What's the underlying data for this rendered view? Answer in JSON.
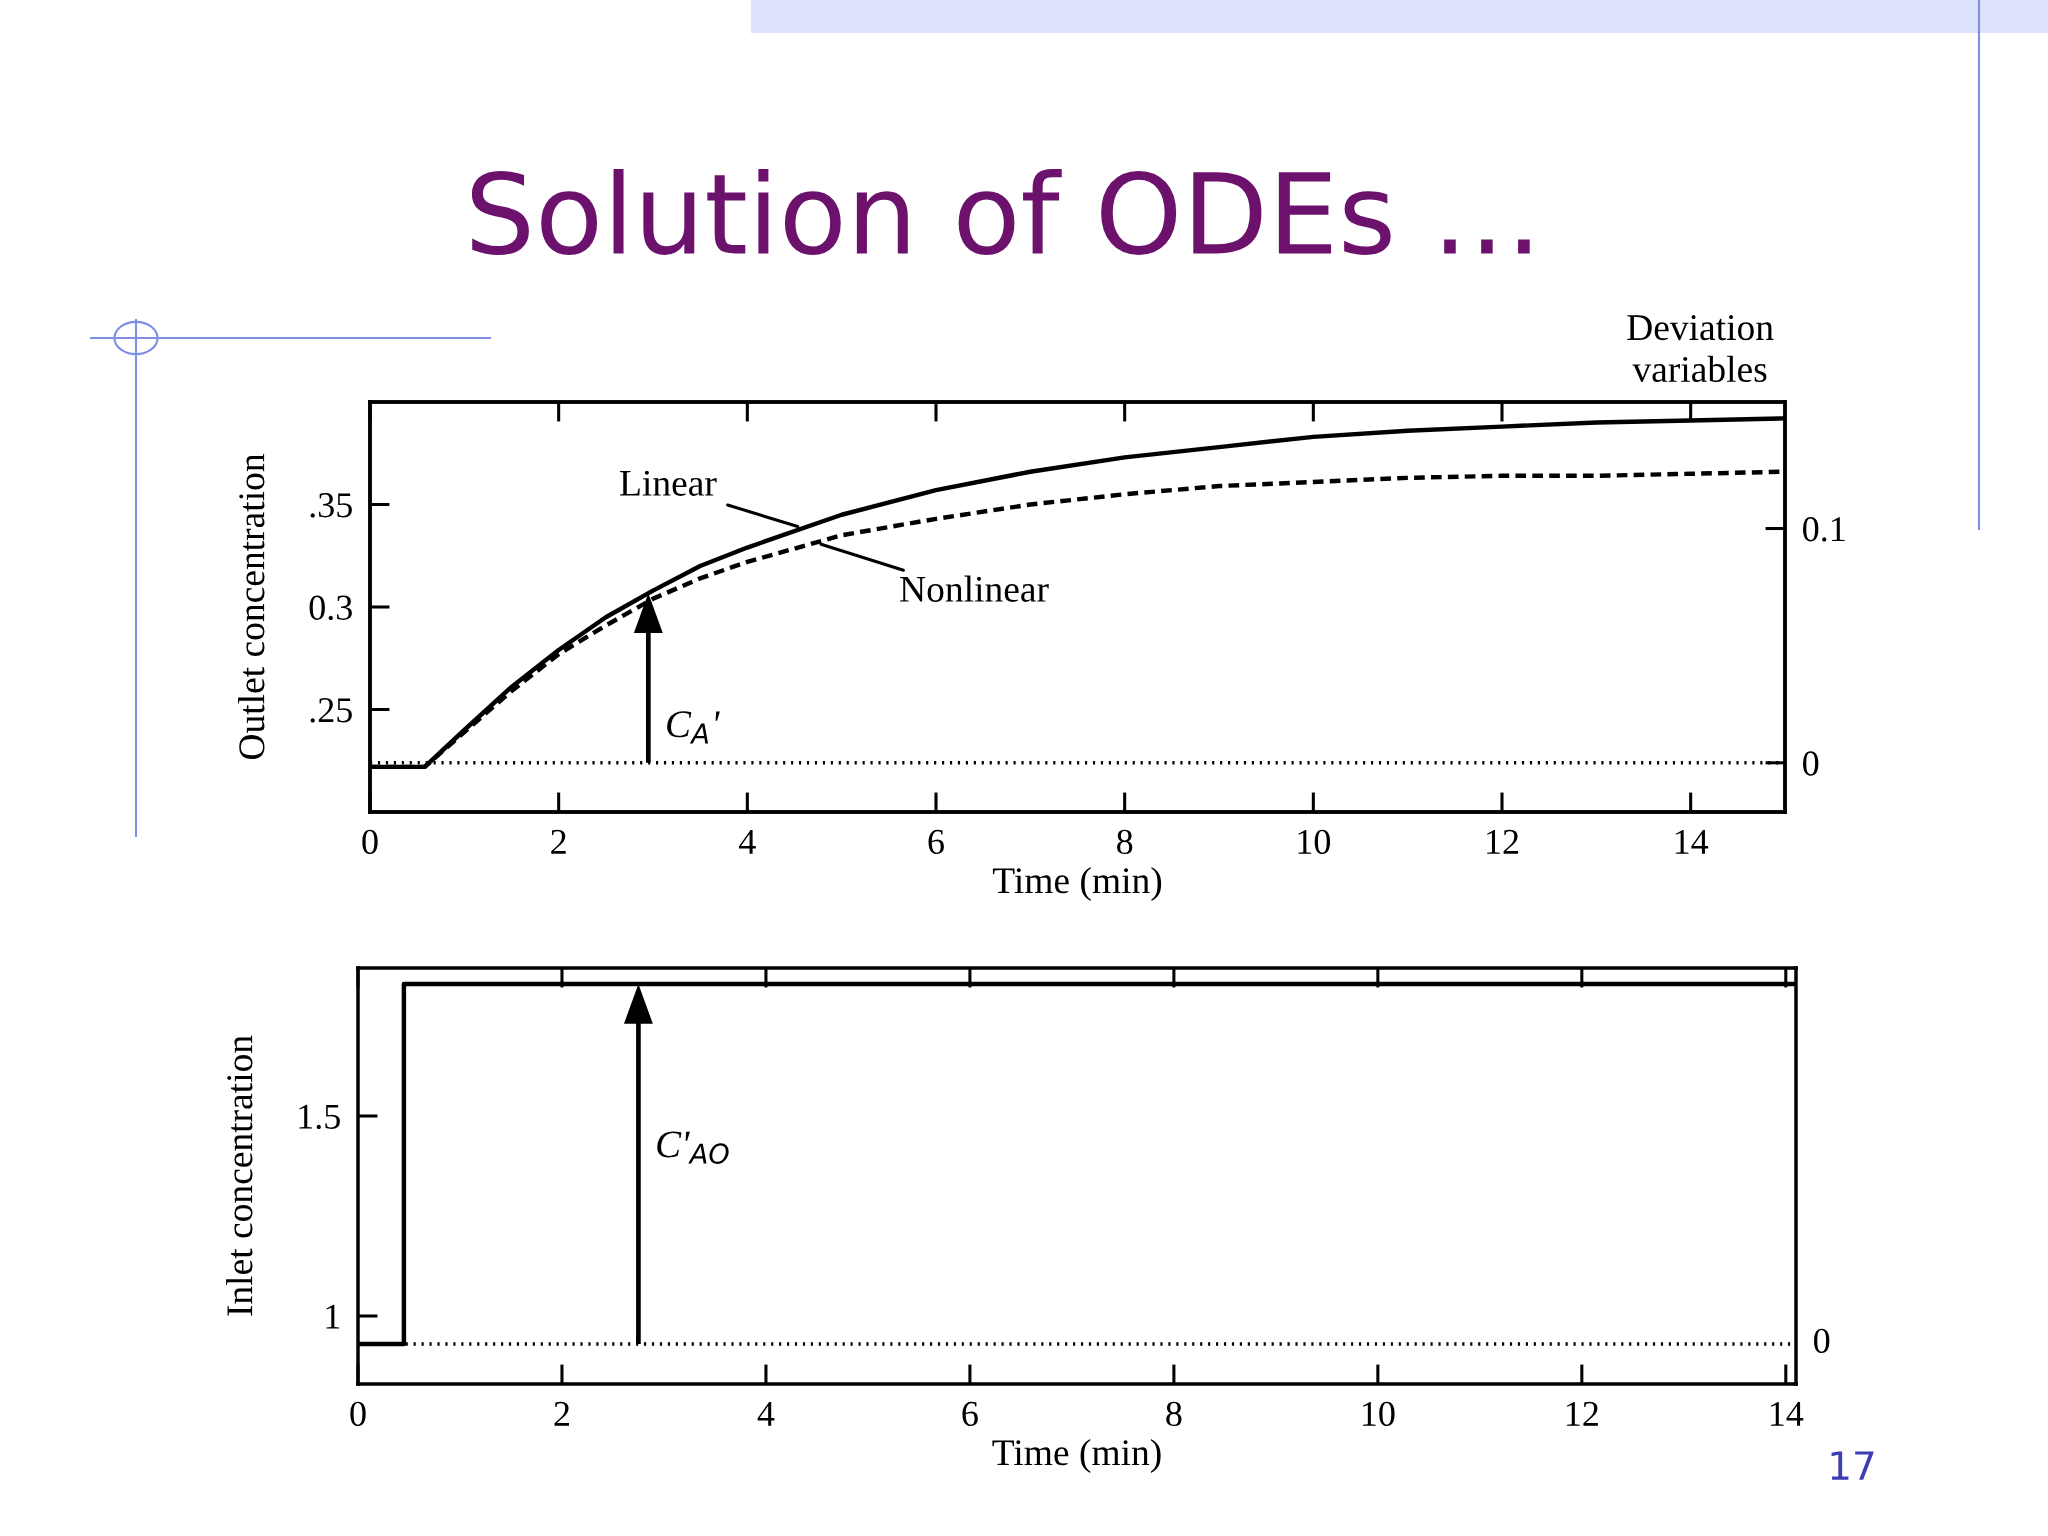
{
  "chart_data": [
    {
      "type": "line",
      "title": "Solution of ODEs …",
      "xlabel": "Time (min)",
      "ylabel": "Outlet concentration",
      "y2label": "Deviation\nvariables",
      "x": [
        0,
        0.58,
        1,
        1.5,
        2,
        2.5,
        3,
        3.5,
        4,
        5,
        6,
        7,
        8,
        9,
        10,
        11,
        12,
        13,
        14,
        15
      ],
      "series": [
        {
          "name": "Linear",
          "color": "#000000",
          "line_style": "solid",
          "values": [
            0.222,
            0.222,
            0.24,
            0.261,
            0.279,
            0.295,
            0.308,
            0.32,
            0.329,
            0.345,
            0.357,
            0.366,
            0.373,
            0.378,
            0.383,
            0.386,
            0.388,
            0.39,
            0.391,
            0.392
          ]
        },
        {
          "name": "Nonlinear",
          "color": "#000000",
          "line_style": "dashed",
          "values": [
            0.222,
            0.222,
            0.239,
            0.259,
            0.277,
            0.291,
            0.304,
            0.314,
            0.322,
            0.335,
            0.343,
            0.35,
            0.355,
            0.359,
            0.361,
            0.363,
            0.364,
            0.364,
            0.365,
            0.366
          ]
        }
      ],
      "xlim": [
        0,
        15
      ],
      "xticks": [
        0,
        2,
        4,
        6,
        8,
        10,
        12,
        14
      ],
      "ylim": [
        0.2,
        0.4
      ],
      "yticks": [
        {
          "value": 0.25,
          "label": ".25"
        },
        {
          "value": 0.3,
          "label": "0.3"
        },
        {
          "value": 0.35,
          "label": ".35"
        }
      ],
      "y2lim": [
        -0.021,
        0.154
      ],
      "y2ticks": [
        0,
        0.1
      ],
      "ref_lines": [
        {
          "axis": "y2",
          "value": 0,
          "color": "#000000",
          "line_style": "dotted"
        }
      ],
      "annotations": [
        "C$_{A}$'"
      ]
    },
    {
      "type": "step",
      "xlabel": "Time (min)",
      "ylabel": "Inlet concentration",
      "x": [
        0,
        0.45,
        14.1
      ],
      "series": [
        {
          "color": "#000000",
          "values": [
            0.93,
            1.83,
            1.83
          ]
        }
      ],
      "xlim": [
        0,
        14.1
      ],
      "xticks": [
        0,
        2,
        4,
        6,
        8,
        10,
        12,
        14
      ],
      "ylim": [
        0.83,
        1.87
      ],
      "yticks": [
        1,
        1.5
      ],
      "ref_lines": [
        {
          "axis": "y",
          "value": 0.93,
          "color": "#000000",
          "line_style": "dotted"
        }
      ],
      "annotations": [
        "C'$_{AO}$",
        "0",
        "17"
      ]
    }
  ]
}
